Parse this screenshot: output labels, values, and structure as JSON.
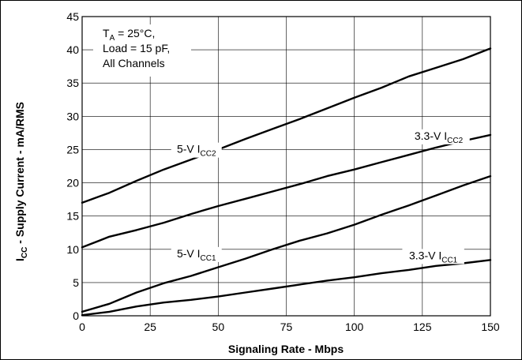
{
  "chart_data": {
    "type": "line",
    "xlabel": "Signaling Rate - Mbps",
    "ylabel": {
      "main": "I",
      "sub": "CC",
      "rest": " - Supply Current - mA/RMS"
    },
    "xlim": [
      0,
      150
    ],
    "ylim": [
      0,
      45
    ],
    "x_ticks": [
      0,
      25,
      50,
      75,
      100,
      125,
      150
    ],
    "y_ticks": [
      0,
      5,
      10,
      15,
      20,
      25,
      30,
      35,
      40,
      45
    ],
    "grid": true,
    "conditions": [
      {
        "main": "T",
        "sub": "A",
        "rest": " = 25°C,"
      },
      {
        "main": "Load = 15 pF,",
        "sub": "",
        "rest": ""
      },
      {
        "main": "All Channels",
        "sub": "",
        "rest": ""
      }
    ],
    "series": [
      {
        "label": {
          "main": "5-V I",
          "sub": "CC2"
        },
        "x": [
          0,
          10,
          20,
          30,
          40,
          50,
          60,
          70,
          80,
          90,
          100,
          110,
          120,
          130,
          140,
          150
        ],
        "y": [
          17,
          18.5,
          20.3,
          22,
          23.5,
          25,
          26.6,
          28.1,
          29.6,
          31.2,
          32.8,
          34.3,
          36,
          37.3,
          38.6,
          40.2
        ]
      },
      {
        "label": {
          "main": "3.3-V I",
          "sub": "CC2"
        },
        "x": [
          0,
          10,
          20,
          30,
          40,
          50,
          60,
          70,
          80,
          90,
          100,
          110,
          120,
          130,
          140,
          150
        ],
        "y": [
          10.3,
          11.9,
          12.9,
          14,
          15.3,
          16.5,
          17.6,
          18.7,
          19.8,
          21,
          22,
          23.1,
          24.2,
          25.3,
          26.3,
          27.2
        ]
      },
      {
        "label": {
          "main": "5-V I",
          "sub": "CC1"
        },
        "x": [
          0,
          10,
          20,
          30,
          40,
          50,
          60,
          70,
          80,
          90,
          100,
          110,
          120,
          130,
          140,
          150
        ],
        "y": [
          0.6,
          1.8,
          3.5,
          4.9,
          6,
          7.3,
          8.6,
          10,
          11.3,
          12.4,
          13.7,
          15.2,
          16.6,
          18.1,
          19.6,
          21
        ]
      },
      {
        "label": {
          "main": "3.3-V I",
          "sub": "CC1"
        },
        "x": [
          0,
          10,
          20,
          30,
          40,
          50,
          60,
          70,
          80,
          90,
          100,
          110,
          120,
          130,
          140,
          150
        ],
        "y": [
          0.1,
          0.6,
          1.4,
          2,
          2.4,
          2.9,
          3.5,
          4.1,
          4.7,
          5.3,
          5.8,
          6.4,
          6.9,
          7.5,
          7.9,
          8.4
        ]
      }
    ],
    "colors": {
      "line": "#000000",
      "grid": "#000000",
      "frame": "#000000",
      "background": "#ffffff"
    }
  }
}
